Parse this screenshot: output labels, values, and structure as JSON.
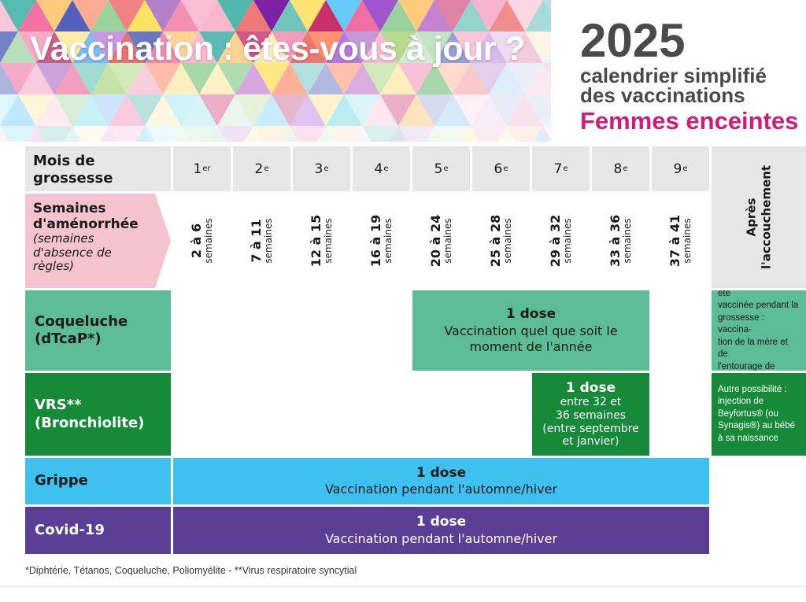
{
  "header": {
    "title": "Vaccination : êtes-vous à jour ?",
    "year": "2025",
    "subtitle_line1": "calendrier simplifié",
    "subtitle_line2": "des vaccinations",
    "audience": "Femmes enceintes"
  },
  "table": {
    "row_header_months": "Mois de grossesse",
    "months": [
      {
        "num": "1",
        "suffix": "er"
      },
      {
        "num": "2",
        "suffix": "e"
      },
      {
        "num": "3",
        "suffix": "e"
      },
      {
        "num": "4",
        "suffix": "e"
      },
      {
        "num": "5",
        "suffix": "e"
      },
      {
        "num": "6",
        "suffix": "e"
      },
      {
        "num": "7",
        "suffix": "e"
      },
      {
        "num": "8",
        "suffix": "e"
      },
      {
        "num": "9",
        "suffix": "e"
      }
    ],
    "after_birth_line1": "Après",
    "after_birth_line2": "l'accouchement",
    "sa_label_line1": "Semaines",
    "sa_label_line2": "d'aménorrhée",
    "sa_label_note": "(semaines d'absence de règles)",
    "weeks": [
      {
        "range": "2 à 6",
        "unit": "semaines"
      },
      {
        "range": "7 à 11",
        "unit": "semaines"
      },
      {
        "range": "12 à 15",
        "unit": "semaines"
      },
      {
        "range": "16 à 19",
        "unit": "semaines"
      },
      {
        "range": "20 à 24",
        "unit": "semaines"
      },
      {
        "range": "25 à 28",
        "unit": "semaines"
      },
      {
        "range": "29 à 32",
        "unit": "semaines"
      },
      {
        "range": "33 à 36",
        "unit": "semaines"
      },
      {
        "range": "37 à 41",
        "unit": "semaines"
      }
    ]
  },
  "vaccines": {
    "coqueluche": {
      "label_line1": "Coqueluche",
      "label_line2": "(dTcaP*)",
      "dose": "1 dose",
      "detail_line1": "Vaccination quel que soit le",
      "detail_line2": "moment de l'année",
      "note_line1": "Si la mère n'a pas été",
      "note_line2": "vaccinée pendant la",
      "note_line3": "grossesse : vaccina-",
      "note_line4": "tion de la mère et de",
      "note_line5": "l'entourage de l'enfant"
    },
    "vrs": {
      "label_line1": "VRS**",
      "label_line2": "(Bronchiolite)",
      "dose": "1 dose",
      "detail_line1": "entre 32 et",
      "detail_line2": "36 semaines",
      "detail_line3": "(entre septembre",
      "detail_line4": "et janvier)",
      "note_line1": "Autre possibilité :",
      "note_line2": "injection de",
      "note_line3": "Beyfortus® (ou",
      "note_line4": "Synagis®) au bébé",
      "note_line5": "à sa naissance"
    },
    "grippe": {
      "label": "Grippe",
      "dose": "1 dose",
      "detail": "Vaccination pendant l'automne/hiver"
    },
    "covid": {
      "label": "Covid-19",
      "dose": "1 dose",
      "detail": "Vaccination pendant l'automne/hiver"
    }
  },
  "colors": {
    "coqueluche": "#5bbc96",
    "vrs": "#178a3a",
    "grippe": "#3ec1ef",
    "covid": "#5a3f95",
    "sa_label": "#f5c4cf",
    "accent": "#d4197a"
  },
  "footnote": "*Diphtérie, Tétanos, Coqueluche, Poliomyélite   -   **Virus respiratoire syncytial"
}
